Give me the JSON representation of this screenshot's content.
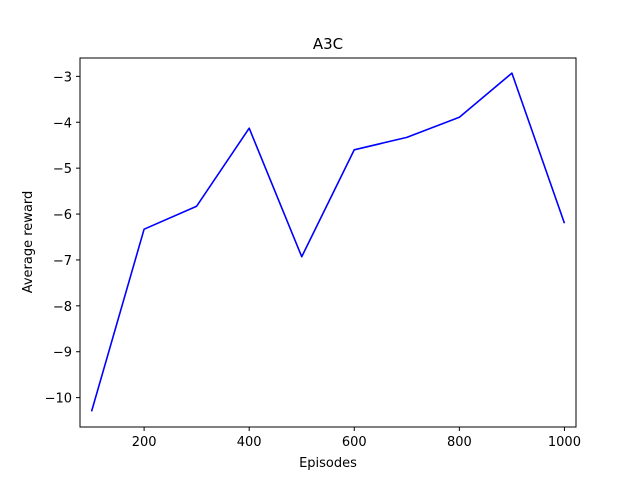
{
  "chart_data": {
    "type": "line",
    "title": "A3C",
    "xlabel": "Episodes",
    "ylabel": "Average reward",
    "xlim": [
      78,
      1022
    ],
    "ylim": [
      -10.64,
      -2.6
    ],
    "xticks": [
      200,
      400,
      600,
      800,
      1000
    ],
    "yticks": [
      -10,
      -9,
      -8,
      -7,
      -6,
      -5,
      -4,
      -3
    ],
    "ytick_labels": [
      "−10",
      "−9",
      "−8",
      "−7",
      "−6",
      "−5",
      "−4",
      "−3"
    ],
    "grid": false,
    "series": [
      {
        "color": "#0000ff",
        "x": [
          100,
          200,
          300,
          400,
          500,
          600,
          700,
          800,
          900,
          1000
        ],
        "y": [
          -10.3,
          -6.33,
          -5.83,
          -4.13,
          -6.93,
          -4.6,
          -4.33,
          -3.89,
          -2.93,
          -6.2
        ]
      }
    ]
  }
}
